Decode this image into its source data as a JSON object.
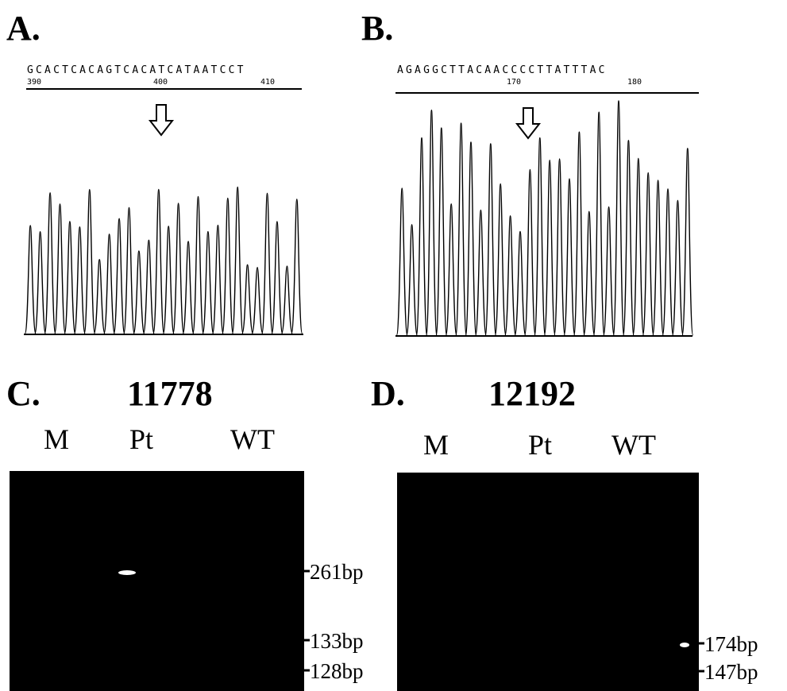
{
  "panels": [
    {
      "label": "A.",
      "sequence": "GCACTCACAGTCACATCATAATCCT",
      "positions": [
        "390",
        "400",
        "410"
      ]
    },
    {
      "label": "B.",
      "sequence": "AGAGGCTTACAACCCCTTATTTAC",
      "positions": [
        "170",
        "180"
      ]
    },
    {
      "label": "C.",
      "title": "11778",
      "lanes": [
        "M",
        "Pt",
        "WT"
      ],
      "markers": [
        "261bp",
        "133bp",
        "128bp"
      ]
    },
    {
      "label": "D.",
      "title": "12192",
      "lanes": [
        "M",
        "Pt",
        "WT"
      ],
      "markers": [
        "174bp",
        "147bp"
      ]
    }
  ]
}
